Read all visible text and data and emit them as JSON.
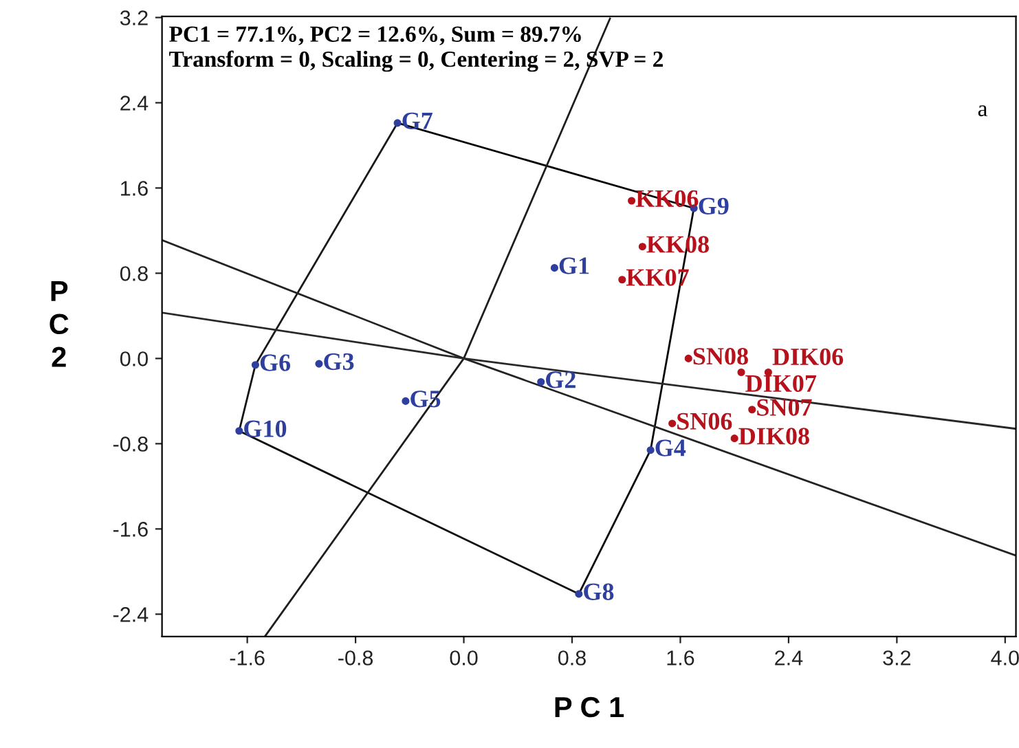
{
  "chart_data": {
    "type": "scatter",
    "xlabel": "P C 1",
    "ylabel": "P C 2",
    "annotations": [
      "PC1 = 77.1%, PC2 = 12.6%, Sum = 89.7%",
      "Transform = 0, Scaling = 0, Centering = 2, SVP = 2",
      "a"
    ],
    "xlim": [
      -2.23,
      4.08
    ],
    "ylim": [
      -2.61,
      3.21
    ],
    "xticks": [
      -1.6,
      -0.8,
      {
        "value": 0,
        "label": "0.0"
      },
      0.8,
      1.6,
      2.4,
      3.2,
      {
        "value": 4,
        "label": "4.0"
      }
    ],
    "yticks": [
      -2.4,
      -1.6,
      -0.8,
      {
        "value": 0,
        "label": "0.0"
      },
      0.8,
      1.6,
      2.4,
      3.2
    ],
    "series": [
      {
        "type": "line",
        "color": "#000000",
        "x": [
          -0.49,
          1.7
        ],
        "values": [
          2.21,
          1.41
        ]
      },
      {
        "type": "line",
        "color": "#050505",
        "x": [
          1.38,
          1.7
        ],
        "values": [
          -0.86,
          1.41
        ]
      },
      {
        "type": "line",
        "color": "#0a0a0a",
        "x": [
          0.85,
          1.38
        ],
        "values": [
          -2.21,
          -0.86
        ]
      },
      {
        "type": "line",
        "color": "#0f0f0f",
        "x": [
          -1.66,
          0.85
        ],
        "values": [
          -0.68,
          -2.21
        ]
      },
      {
        "type": "line",
        "color": "#141414",
        "x": [
          -1.66,
          -1.54
        ],
        "values": [
          -0.68,
          -0.06
        ]
      },
      {
        "type": "line",
        "color": "#191919",
        "x": [
          -1.54,
          -0.49
        ],
        "values": [
          -0.06,
          2.21
        ]
      },
      {
        "type": "line",
        "color": "#1e1e1e",
        "x": [
          -1.47,
          0,
          1.08
        ],
        "values": [
          -2.61,
          0,
          3.19
        ]
      },
      {
        "type": "line",
        "color": "#232323",
        "x": [
          -2.23,
          0,
          4.08
        ],
        "values": [
          1.11,
          0,
          -1.85
        ]
      },
      {
        "type": "line",
        "color": "#282828",
        "x": [
          -2.23,
          0,
          4.08
        ],
        "values": [
          0.43,
          0,
          -0.66
        ]
      },
      {
        "marker": "circle",
        "color": "#2e3f9e",
        "x": [
          0.67,
          0.57,
          -1.07,
          1.38,
          -0.43,
          -1.54,
          -0.49,
          0.85,
          1.7,
          -1.66
        ],
        "values": [
          0.85,
          -0.22,
          -0.05,
          -0.86,
          -0.4,
          -0.06,
          2.21,
          -2.21,
          1.41,
          -0.68
        ],
        "value_labels": [
          "G1",
          "G2",
          "G3",
          "G4",
          "G5",
          "G6",
          "G7",
          "G8",
          "G9",
          "G10"
        ]
      },
      {
        "marker": "circle",
        "color": "#b5121b",
        "x": [
          1.24,
          1.32,
          1.17,
          1.66,
          2.05,
          2.25,
          2.13,
          1.54,
          2.0
        ],
        "values": [
          1.48,
          1.05,
          0.74,
          0.0,
          -0.13,
          -0.13,
          -0.48,
          -0.61,
          -0.75
        ],
        "value_labels": [
          "KK06",
          "KK08",
          "KK07",
          "SN08",
          "DIK07",
          "DIK06",
          "SN07",
          "SN06",
          "DIK08"
        ]
      }
    ]
  }
}
